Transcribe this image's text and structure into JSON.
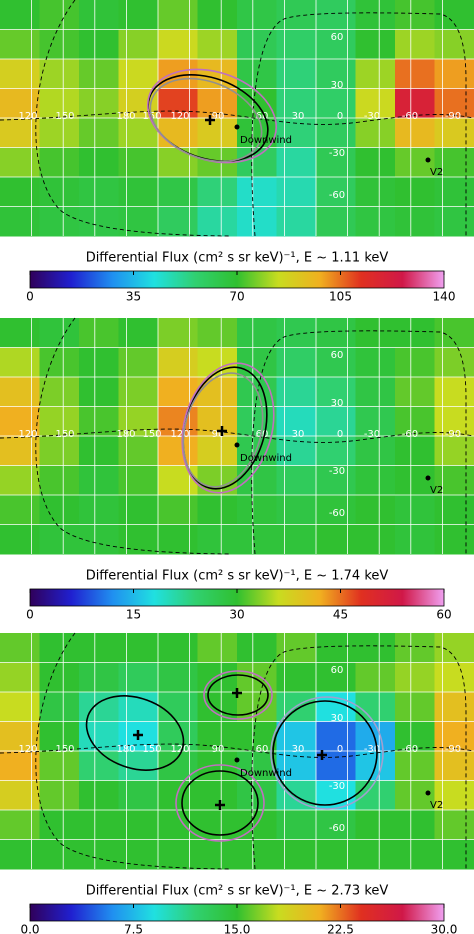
{
  "chart_data": [
    {
      "type": "heatmap",
      "colorbar_label": "Differential Flux (cm² s sr keV)⁻¹, E ~ 1.11 keV",
      "vlim": [
        0,
        140
      ],
      "ticks": [
        0,
        35,
        70,
        105,
        140
      ],
      "colormap": [
        "#30005a",
        "#2020d0",
        "#2090f0",
        "#20e0e0",
        "#30d070",
        "#30c030",
        "#c8dc20",
        "#f0b020",
        "#e03020",
        "#d01848",
        "#f0a0f0"
      ],
      "lon_labels": [
        120,
        150,
        180,
        150,
        120,
        90,
        60,
        30,
        0,
        -30,
        -60,
        -90
      ],
      "lat_labels": [
        60,
        30,
        -30,
        -60
      ],
      "annotations": [
        "Downwind",
        "V2"
      ],
      "values": [
        [
          70,
          72,
          68,
          70,
          75,
          70,
          65,
          62,
          60,
          68,
          72,
          70
        ],
        [
          75,
          72,
          70,
          78,
          85,
          80,
          62,
          58,
          60,
          70,
          80,
          78
        ],
        [
          88,
          80,
          75,
          85,
          100,
          95,
          65,
          55,
          60,
          80,
          105,
          100
        ],
        [
          95,
          82,
          78,
          88,
          110,
          100,
          70,
          55,
          58,
          85,
          120,
          105
        ],
        [
          90,
          80,
          75,
          80,
          95,
          90,
          68,
          55,
          60,
          78,
          95,
          90
        ],
        [
          78,
          72,
          70,
          72,
          78,
          75,
          60,
          50,
          62,
          70,
          75,
          72
        ],
        [
          70,
          68,
          66,
          68,
          65,
          55,
          45,
          48,
          60,
          68,
          70,
          68
        ],
        [
          68,
          66,
          65,
          66,
          60,
          50,
          45,
          50,
          62,
          66,
          68,
          66
        ]
      ]
    },
    {
      "type": "heatmap",
      "colorbar_label": "Differential Flux (cm² s sr keV)⁻¹, E ~ 1.74 keV",
      "vlim": [
        0,
        60
      ],
      "ticks": [
        0,
        15,
        30,
        45,
        60
      ],
      "colormap": [
        "#30005a",
        "#2020d0",
        "#2090f0",
        "#20e0e0",
        "#30d070",
        "#30c030",
        "#c8dc20",
        "#f0b020",
        "#e03020",
        "#d01848",
        "#f0a0f0"
      ],
      "lon_labels": [
        120,
        150,
        180,
        150,
        120,
        90,
        60,
        30,
        0,
        -30,
        -60,
        -90
      ],
      "lat_labels": [
        60,
        30,
        -30,
        -60
      ],
      "annotations": [
        "Downwind",
        "V2"
      ],
      "values": [
        [
          30,
          29,
          31,
          30,
          33,
          32,
          28,
          27,
          28,
          30,
          30,
          31
        ],
        [
          35,
          31,
          30,
          32,
          38,
          36,
          28,
          25,
          27,
          29,
          31,
          33
        ],
        [
          40,
          33,
          30,
          33,
          42,
          40,
          27,
          22,
          24,
          28,
          32,
          36
        ],
        [
          42,
          34,
          31,
          34,
          44,
          40,
          26,
          20,
          22,
          27,
          31,
          36
        ],
        [
          40,
          33,
          30,
          32,
          42,
          38,
          27,
          22,
          24,
          28,
          30,
          34
        ],
        [
          34,
          31,
          29,
          31,
          36,
          33,
          28,
          26,
          27,
          29,
          30,
          31
        ],
        [
          31,
          30,
          29,
          30,
          31,
          30,
          29,
          28,
          29,
          30,
          29,
          30
        ],
        [
          30,
          29,
          29,
          30,
          30,
          29,
          29,
          29,
          30,
          30,
          29,
          30
        ]
      ]
    },
    {
      "type": "heatmap",
      "colorbar_label": "Differential Flux (cm² s sr keV)⁻¹, E ~ 2.73 keV",
      "vlim": [
        0,
        30
      ],
      "ticks": [
        {
          "value": 0,
          "label": "0.0"
        },
        {
          "value": 7.5,
          "label": "7.5"
        },
        {
          "value": 15,
          "label": "15.0"
        },
        {
          "value": 22.5,
          "label": "22.5"
        },
        {
          "value": 30,
          "label": "30.0"
        }
      ],
      "colormap": [
        "#30005a",
        "#2020d0",
        "#2090f0",
        "#20e0e0",
        "#30d070",
        "#30c030",
        "#c8dc20",
        "#f0b020",
        "#e03020",
        "#d01848",
        "#f0a0f0"
      ],
      "lon_labels": [
        120,
        150,
        180,
        150,
        120,
        90,
        60,
        30,
        0,
        -30,
        -60,
        -90
      ],
      "lat_labels": [
        60,
        30,
        -30,
        -60
      ],
      "annotations": [
        "Downwind",
        "V2"
      ],
      "values": [
        [
          16,
          15,
          15,
          15,
          15,
          16,
          15,
          16,
          15,
          15,
          16,
          17
        ],
        [
          17,
          15,
          14,
          13,
          14,
          15,
          16,
          15,
          15,
          16,
          17,
          18
        ],
        [
          18,
          14,
          11,
          10,
          13,
          15,
          16,
          12,
          9,
          12,
          16,
          20
        ],
        [
          20,
          15,
          10,
          9,
          13,
          15,
          15,
          8,
          5,
          7,
          15,
          21
        ],
        [
          21,
          16,
          12,
          11,
          14,
          15,
          14,
          8,
          5,
          8,
          16,
          20
        ],
        [
          19,
          16,
          15,
          14,
          15,
          15,
          14,
          11,
          9,
          12,
          16,
          18
        ],
        [
          16,
          15,
          15,
          15,
          15,
          15,
          15,
          14,
          14,
          15,
          15,
          16
        ],
        [
          15,
          15,
          15,
          15,
          15,
          15,
          15,
          15,
          15,
          15,
          15,
          15
        ]
      ]
    }
  ]
}
